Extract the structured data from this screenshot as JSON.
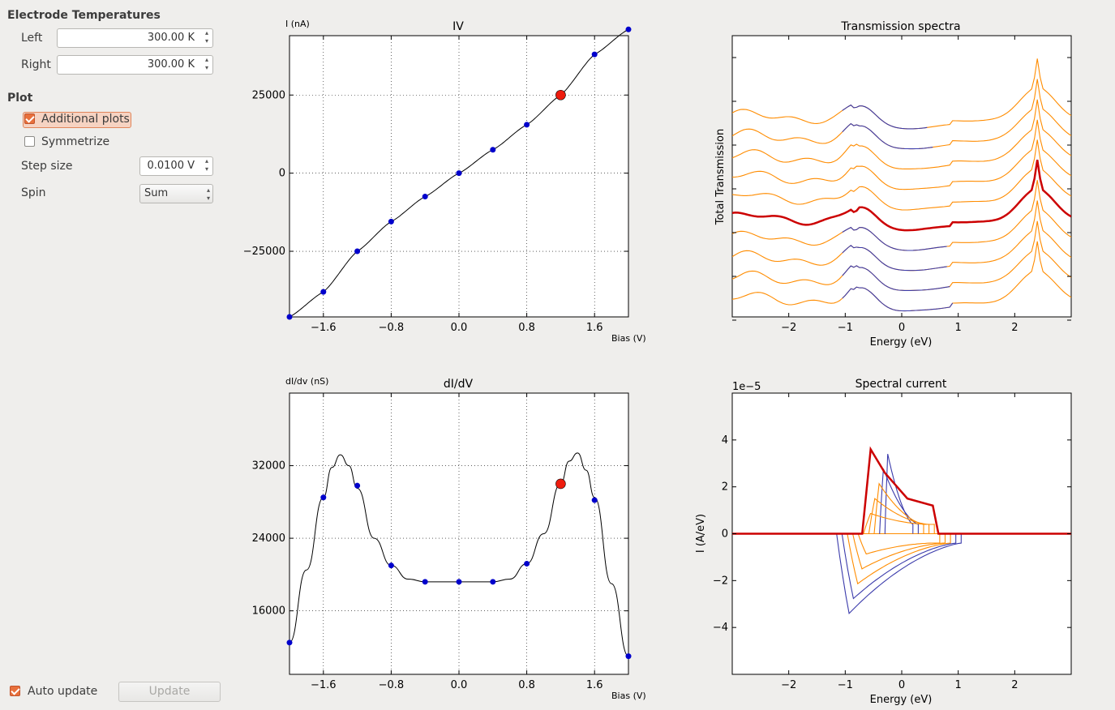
{
  "sidebar": {
    "electrode_title": "Electrode Temperatures",
    "left_label": "Left",
    "left_value": "300.00 K",
    "right_label": "Right",
    "right_value": "300.00 K",
    "plot_title": "Plot",
    "additional_plots_label": "Additional plots",
    "additional_plots_checked": true,
    "symmetrize_label": "Symmetrize",
    "symmetrize_checked": false,
    "step_size_label": "Step size",
    "step_size_value": "0.0100 V",
    "spin_label": "Spin",
    "spin_value": "Sum",
    "auto_update_label": "Auto update",
    "auto_update_checked": true,
    "update_button": "Update"
  },
  "colors": {
    "marker_blue": "#0000cc",
    "marker_red": "#ee1c0e",
    "curve_orange": "#ff8c00",
    "curve_blue": "#3b3bab",
    "highlight_red": "#cc0000",
    "accent_orange": "#e8703c"
  },
  "chart_data": [
    {
      "type": "line",
      "title": "IV",
      "ylabel": "I (nA)",
      "xlabel": "Bias (V)",
      "xlim": [
        -2.0,
        2.0
      ],
      "ylim": [
        -46000,
        44000
      ],
      "xticks": [
        -1.6,
        -0.8,
        0.0,
        0.8,
        1.6
      ],
      "xtick_labels": [
        "−1.6",
        "−0.8",
        "0.0",
        "0.8",
        "1.6"
      ],
      "yticks": [
        -25000,
        0,
        25000
      ],
      "ytick_labels": [
        "−25000",
        "0",
        "25000"
      ],
      "grid": true,
      "markers": {
        "x": [
          -2.0,
          -1.6,
          -1.2,
          -0.8,
          -0.4,
          0.0,
          0.4,
          0.8,
          1.2,
          1.6,
          2.0
        ],
        "y": [
          -46000,
          -38000,
          -25000,
          -15500,
          -7500,
          0,
          7500,
          15500,
          25000,
          38000,
          46000
        ]
      },
      "selected": {
        "x": 1.2,
        "y": 25000
      }
    },
    {
      "type": "line",
      "title": "dI/dV",
      "ylabel": "dI/dv (nS)",
      "xlabel": "Bias (V)",
      "xlim": [
        -2.0,
        2.0
      ],
      "ylim": [
        9000,
        40000
      ],
      "xticks": [
        -1.6,
        -0.8,
        0.0,
        0.8,
        1.6
      ],
      "xtick_labels": [
        "−1.6",
        "−0.8",
        "0.0",
        "0.8",
        "1.6"
      ],
      "yticks": [
        16000,
        24000,
        32000
      ],
      "ytick_labels": [
        "16000",
        "24000",
        "32000"
      ],
      "grid": true,
      "curve": {
        "x": [
          -2.0,
          -1.8,
          -1.6,
          -1.5,
          -1.4,
          -1.3,
          -1.2,
          -1.0,
          -0.8,
          -0.6,
          -0.4,
          0.0,
          0.4,
          0.6,
          0.8,
          1.0,
          1.2,
          1.3,
          1.4,
          1.5,
          1.6,
          1.8,
          2.0
        ],
        "y": [
          12500,
          20500,
          28500,
          31800,
          33200,
          32000,
          29500,
          24000,
          21000,
          19500,
          19200,
          19200,
          19200,
          19500,
          21200,
          24500,
          30000,
          32500,
          33400,
          31500,
          28500,
          19000,
          11000
        ]
      },
      "markers": {
        "x": [
          -2.0,
          -1.6,
          -1.2,
          -0.8,
          -0.4,
          0.0,
          0.4,
          0.8,
          1.2,
          1.6,
          2.0
        ],
        "y": [
          12500,
          28500,
          29800,
          21000,
          19200,
          19200,
          19200,
          21200,
          30000,
          28200,
          11000
        ]
      },
      "selected": {
        "x": 1.2,
        "y": 30000
      }
    },
    {
      "type": "line",
      "title": "Transmission spectra",
      "ylabel": "Total Transmission",
      "xlabel": "Energy (eV)",
      "xlim": [
        -3.0,
        3.0
      ],
      "xticks": [
        -2,
        -1,
        0,
        1,
        2
      ],
      "xtick_labels": [
        "−2",
        "−1",
        "0",
        "1",
        "2"
      ],
      "curve_count": 10,
      "highlighted_curve": 4
    },
    {
      "type": "line",
      "title": "Spectral current",
      "ylabel": "I (A/eV)",
      "xlabel": "Energy (eV)",
      "offset_label": "1e−5",
      "xlim": [
        -3.0,
        3.0
      ],
      "ylim": [
        -6.0,
        6.0
      ],
      "xticks": [
        -2,
        -1,
        0,
        1,
        2
      ],
      "xtick_labels": [
        "−2",
        "−1",
        "0",
        "1",
        "2"
      ],
      "yticks": [
        -4,
        -2,
        0,
        2,
        4
      ],
      "ytick_labels": [
        "−4",
        "−2",
        "0",
        "2",
        "4"
      ],
      "highlighted_peak": 3.6
    }
  ]
}
